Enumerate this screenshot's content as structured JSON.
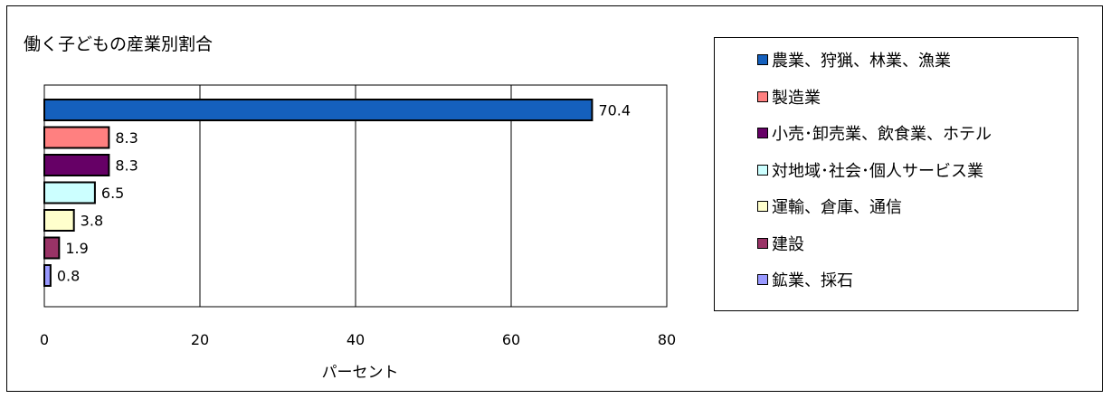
{
  "chart_data": {
    "type": "bar",
    "orientation": "horizontal",
    "title": "働く子どもの産業別割合",
    "xlabel": "パーセント",
    "ylabel": "",
    "xlim": [
      0,
      80
    ],
    "x_ticks": [
      "0",
      "20",
      "40",
      "60",
      "80"
    ],
    "grid": "vertical",
    "legend_position": "right",
    "categories": [
      "農業、狩猟、林業、漁業",
      "製造業",
      "小売･卸売業、飲食業、ホテル",
      "対地域･社会･個人サービス業",
      "運輸、倉庫、通信",
      "建設",
      "鉱業、採石"
    ],
    "values": [
      70.4,
      8.3,
      8.3,
      6.5,
      3.8,
      1.9,
      0.8
    ],
    "value_labels": [
      "70.4",
      "8.3",
      "8.3",
      "6.5",
      "3.8",
      "1.9",
      "0.8"
    ],
    "colors": [
      "#1560bd",
      "#ff8080",
      "#660066",
      "#ccffff",
      "#ffffcc",
      "#993366",
      "#9999ff"
    ]
  }
}
